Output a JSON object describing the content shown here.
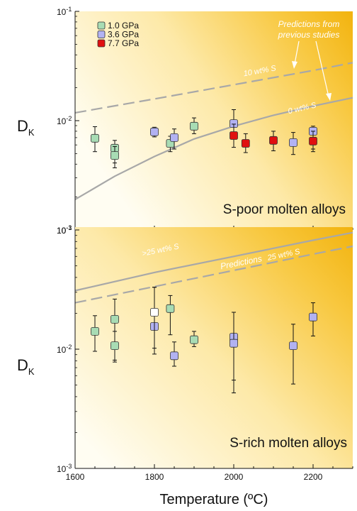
{
  "chart_data": {
    "type": "scatter",
    "xlabel": "Temperature (ºC)",
    "x_ticks": [
      "1600",
      "1800",
      "2000",
      "2200"
    ],
    "xlim": [
      1600,
      2300
    ],
    "legend": [
      {
        "name": "1.0 GPa",
        "color": "#a8dcb4"
      },
      {
        "name": "3.6 GPa",
        "color": "#b2b2f2"
      },
      {
        "name": "7.7 GPa",
        "color": "#e01010"
      }
    ],
    "panels": [
      {
        "id": "top",
        "title": "S-poor molten alloys",
        "ylabel_main": "D",
        "ylabel_sub": "K",
        "yscale": "log",
        "ylim": [
          0.001,
          0.1
        ],
        "y_ticks": [
          {
            "base": "10",
            "exp": "-1",
            "value": 0.1
          },
          {
            "base": "10",
            "exp": "-2",
            "value": 0.01
          },
          {
            "base": "10",
            "exp": "-3",
            "value": 0.001
          }
        ],
        "annotation_lines": [
          "Predictions from",
          "previous studies"
        ],
        "curves": [
          {
            "label": "10 wt% S",
            "style": "dashed",
            "x": [
              1600,
              1800,
              2000,
              2200,
              2300
            ],
            "y": [
              0.0118,
              0.0158,
              0.0213,
              0.0288,
              0.0339
            ]
          },
          {
            "label": "0 wt% S",
            "style": "solid",
            "x": [
              1600,
              1700,
              1800,
              1900,
              2000,
              2100,
              2200,
              2300
            ],
            "y": [
              0.0019,
              0.0031,
              0.0047,
              0.0068,
              0.0089,
              0.0112,
              0.0136,
              0.0162
            ]
          }
        ],
        "series": [
          {
            "name": "1.0 GPa",
            "points": [
              {
                "x": 1650,
                "y": 0.0069,
                "lo": 0.0052,
                "hi": 0.0088
              },
              {
                "x": 1700,
                "y": 0.0056,
                "lo": 0.0041,
                "hi": 0.0066
              },
              {
                "x": 1700,
                "y": 0.0048,
                "lo": 0.0037,
                "hi": 0.0058
              },
              {
                "x": 1840,
                "y": 0.0062,
                "lo": 0.0052,
                "hi": 0.0072
              },
              {
                "x": 1900,
                "y": 0.0089,
                "lo": 0.0076,
                "hi": 0.0106
              }
            ]
          },
          {
            "name": "3.6 GPa",
            "points": [
              {
                "x": 1800,
                "y": 0.0079,
                "lo": 0.0071,
                "hi": 0.0087
              },
              {
                "x": 1850,
                "y": 0.007,
                "lo": 0.0055,
                "hi": 0.0084
              },
              {
                "x": 2000,
                "y": 0.0094,
                "lo": 0.0075,
                "hi": 0.0126
              },
              {
                "x": 2150,
                "y": 0.0063,
                "lo": 0.0049,
                "hi": 0.0078
              },
              {
                "x": 2200,
                "y": 0.008,
                "lo": 0.0055,
                "hi": 0.0089
              }
            ]
          },
          {
            "name": "7.7 GPa",
            "points": [
              {
                "x": 2000,
                "y": 0.0073,
                "lo": 0.0057,
                "hi": 0.0093
              },
              {
                "x": 2030,
                "y": 0.0062,
                "lo": 0.0051,
                "hi": 0.0076
              },
              {
                "x": 2100,
                "y": 0.0066,
                "lo": 0.0053,
                "hi": 0.008
              },
              {
                "x": 2200,
                "y": 0.0065,
                "lo": 0.0052,
                "hi": 0.008
              }
            ]
          }
        ]
      },
      {
        "id": "bottom",
        "title": "S-rich molten alloys",
        "ylabel_main": "D",
        "ylabel_sub": "K",
        "yscale": "log",
        "ylim": [
          0.001,
          0.1
        ],
        "y_ticks": [
          {
            "base": "10",
            "exp": "-1",
            "value": 0.1
          },
          {
            "base": "10",
            "exp": "-2",
            "value": 0.01
          },
          {
            "base": "10",
            "exp": "-3",
            "value": 0.001
          }
        ],
        "annotation_lines": [
          "Predictions"
        ],
        "curves": [
          {
            "label": ">25 wt% S",
            "style": "solid",
            "x": [
              1600,
              1800,
              2000,
              2200,
              2300
            ],
            "y": [
              0.031,
              0.044,
              0.06,
              0.082,
              0.095
            ]
          },
          {
            "label": "25 wt% S",
            "style": "dashed",
            "x": [
              1600,
              1800,
              2000,
              2200,
              2300
            ],
            "y": [
              0.0245,
              0.0335,
              0.0458,
              0.0627,
              0.073
            ]
          }
        ],
        "series": [
          {
            "name": "1.0 GPa",
            "points": [
              {
                "x": 1650,
                "y": 0.0141,
                "lo": 0.0096,
                "hi": 0.0191
              },
              {
                "x": 1700,
                "y": 0.0178,
                "lo": 0.0081,
                "hi": 0.0263
              },
              {
                "x": 1700,
                "y": 0.0107,
                "lo": 0.0078,
                "hi": 0.0141
              },
              {
                "x": 1840,
                "y": 0.0219,
                "lo": 0.0132,
                "hi": 0.0282
              },
              {
                "x": 1900,
                "y": 0.012,
                "lo": 0.0105,
                "hi": 0.0141
              }
            ]
          },
          {
            "name": "3.6 GPa",
            "points": [
              {
                "x": 1800,
                "y": 0.0155,
                "lo": 0.0091,
                "hi": 0.0331
              },
              {
                "x": 1850,
                "y": 0.0088,
                "lo": 0.0072,
                "hi": 0.0115
              },
              {
                "x": 2000,
                "y": 0.0126,
                "lo": 0.0055,
                "hi": 0.0204
              },
              {
                "x": 2000,
                "y": 0.0112,
                "lo": 0.0043,
                "hi": 0.0204
              },
              {
                "x": 2150,
                "y": 0.0107,
                "lo": 0.0051,
                "hi": 0.0162
              },
              {
                "x": 2200,
                "y": 0.0186,
                "lo": 0.0129,
                "hi": 0.0245
              }
            ]
          },
          {
            "name": "open",
            "points": [
              {
                "x": 1800,
                "y": 0.0204,
                "lo": 0.0102,
                "hi": 0.0331
              }
            ]
          }
        ]
      }
    ]
  }
}
